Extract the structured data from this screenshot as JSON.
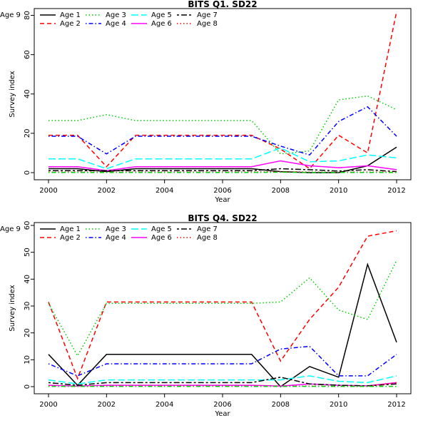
{
  "chart_data": [
    {
      "type": "line",
      "title": "BITS Q1. SD22",
      "xlabel": "Year",
      "ylabel": "Survey index",
      "xlim": [
        2000,
        2012
      ],
      "ylim": [
        0,
        82
      ],
      "xticks": [
        2000,
        2002,
        2004,
        2006,
        2008,
        2010,
        2012
      ],
      "yticks": [
        0,
        20,
        40,
        60,
        80
      ],
      "legend_position": "top-left",
      "x": [
        2000,
        2001,
        2002,
        2003,
        2004,
        2005,
        2006,
        2007,
        2008,
        2009,
        2010,
        2011,
        2012
      ],
      "series": [
        {
          "name": "Age 1",
          "color": "#000000",
          "dash": "solid",
          "values": [
            2,
            2,
            0.5,
            2,
            2,
            2,
            2,
            2,
            0.5,
            0,
            0,
            3.5,
            13
          ]
        },
        {
          "name": "Age 2",
          "color": "#ff0000",
          "dash": "dashed",
          "values": [
            19,
            19,
            3,
            19,
            19,
            19,
            19,
            19,
            12,
            2,
            19,
            10,
            82
          ]
        },
        {
          "name": "Age 3",
          "color": "#00cd00",
          "dash": "dotted",
          "values": [
            26.5,
            26.5,
            29.5,
            26.5,
            26.5,
            26.5,
            26.5,
            26.5,
            9.5,
            11,
            37,
            39,
            32
          ]
        },
        {
          "name": "Age 4",
          "color": "#0000ff",
          "dash": "dotdash",
          "values": [
            18.5,
            18.5,
            9.5,
            18.5,
            18.5,
            18.5,
            18.5,
            18.5,
            13.5,
            9,
            26,
            33.5,
            18.5
          ]
        },
        {
          "name": "Age 5",
          "color": "#00ffff",
          "dash": "longdash",
          "values": [
            7,
            7,
            2,
            7,
            7,
            7,
            7,
            7,
            12.5,
            5.5,
            6,
            9,
            7.5
          ]
        },
        {
          "name": "Age 6",
          "color": "#ff00ff",
          "dash": "solid",
          "values": [
            3,
            3,
            1,
            3,
            3,
            3,
            3,
            3,
            6,
            3.5,
            2.5,
            3.5,
            1.5
          ]
        },
        {
          "name": "Age 7",
          "color": "#000000",
          "dash": "twodash",
          "values": [
            1,
            1,
            1,
            1,
            1,
            1,
            1,
            1,
            2,
            1.5,
            0.8,
            1.5,
            0.5
          ]
        },
        {
          "name": "Age 8",
          "color": "#ff0000",
          "dash": "dotted",
          "values": [
            0.3,
            0.3,
            0.2,
            0.3,
            0.3,
            0.3,
            0.3,
            0.3,
            0.5,
            0.3,
            0.2,
            0.3,
            0.2
          ]
        },
        {
          "name": "Age 9",
          "color": "#00cd00",
          "dash": "dotdash",
          "values": [
            0.1,
            0.1,
            0.1,
            0.1,
            0.1,
            0.1,
            0.1,
            0.1,
            0.2,
            0.1,
            0.1,
            0.1,
            0.1
          ]
        }
      ]
    },
    {
      "type": "line",
      "title": "BITS Q4. SD22",
      "xlabel": "Year",
      "ylabel": "Survey index",
      "xlim": [
        2000,
        2012
      ],
      "ylim": [
        0,
        60
      ],
      "xticks": [
        2000,
        2002,
        2004,
        2006,
        2008,
        2010,
        2012
      ],
      "yticks": [
        0,
        10,
        20,
        30,
        40,
        50,
        60
      ],
      "legend_position": "top-left",
      "x": [
        2000,
        2001,
        2002,
        2003,
        2004,
        2005,
        2006,
        2007,
        2008,
        2009,
        2010,
        2011,
        2012
      ],
      "series": [
        {
          "name": "Age 1",
          "color": "#000000",
          "dash": "solid",
          "values": [
            12,
            0.5,
            12,
            12,
            12,
            12,
            12,
            12,
            0,
            7.5,
            3.5,
            45.5,
            16.5
          ]
        },
        {
          "name": "Age 2",
          "color": "#ff0000",
          "dash": "dashed",
          "values": [
            31.5,
            3,
            31.5,
            31.5,
            31.5,
            31.5,
            31.5,
            31.5,
            9.5,
            25,
            37,
            56,
            58
          ]
        },
        {
          "name": "Age 3",
          "color": "#00cd00",
          "dash": "dotted",
          "values": [
            31,
            11.5,
            31,
            31,
            31,
            31,
            31,
            31,
            31.5,
            40.5,
            28.5,
            25,
            47
          ]
        },
        {
          "name": "Age 4",
          "color": "#0000ff",
          "dash": "dotdash",
          "values": [
            8.5,
            4,
            8.5,
            8.5,
            8.5,
            8.5,
            8.5,
            8.5,
            14,
            15,
            4,
            4,
            12
          ]
        },
        {
          "name": "Age 5",
          "color": "#00ffff",
          "dash": "longdash",
          "values": [
            2.5,
            1,
            2.5,
            2.5,
            2.5,
            2.5,
            2.5,
            2.5,
            2.5,
            4,
            2,
            1.5,
            4
          ]
        },
        {
          "name": "Age 6",
          "color": "#ff00ff",
          "dash": "solid",
          "values": [
            0.5,
            0.2,
            0.5,
            0.5,
            0.5,
            0.5,
            0.5,
            0.5,
            0.2,
            1,
            0.5,
            0.3,
            1.5
          ]
        },
        {
          "name": "Age 7",
          "color": "#000000",
          "dash": "twodash",
          "values": [
            1.5,
            0.5,
            1.5,
            1.5,
            1.5,
            1.5,
            1.5,
            1.5,
            3.5,
            1,
            0.5,
            0.3,
            1
          ]
        },
        {
          "name": "Age 8",
          "color": "#ff0000",
          "dash": "dotted",
          "values": [
            0.2,
            0.1,
            0.2,
            0.2,
            0.2,
            0.2,
            0.2,
            0.2,
            0.2,
            0.2,
            0.1,
            0.1,
            1.5
          ]
        },
        {
          "name": "Age 9",
          "color": "#00cd00",
          "dash": "dotdash",
          "values": [
            0.1,
            0.1,
            0.1,
            0.1,
            0.1,
            0.1,
            0.1,
            0.1,
            0.1,
            0.1,
            0.1,
            0.1,
            0.1
          ]
        }
      ]
    }
  ]
}
